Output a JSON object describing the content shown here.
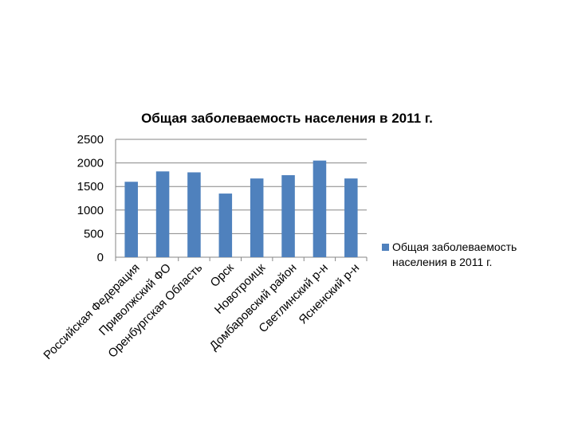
{
  "chart_data": {
    "type": "bar",
    "title": "Общая заболеваемость населения в 2011 г.",
    "categories": [
      "Российская Федерация",
      "Приволжский ФО",
      "Оренбургская Область",
      "Орск",
      "Новотроицк",
      "Домбаровский район",
      "Светлинский р-н",
      "Ясненский р-н"
    ],
    "series": [
      {
        "name": "Общая заболеваемость населения в 2011 г.",
        "values": [
          1600,
          1820,
          1800,
          1350,
          1670,
          1740,
          2050,
          1670
        ],
        "color": "#4F81BD"
      }
    ],
    "ylim": [
      0,
      2500
    ],
    "yticks": [
      0,
      500,
      1000,
      1500,
      2000,
      2500
    ],
    "grid": true,
    "legend": "right",
    "xlabel": "",
    "ylabel": ""
  },
  "legend": {
    "line1": "Общая заболеваемость",
    "line2": "населения в 2011 г."
  }
}
